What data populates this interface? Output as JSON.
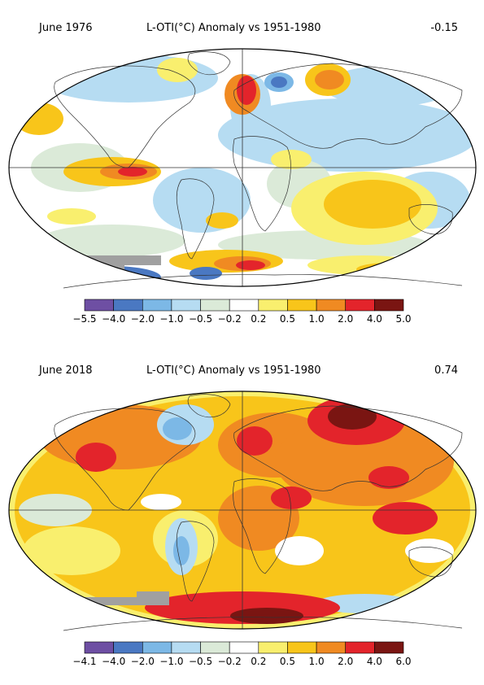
{
  "panels": [
    {
      "date": "June 1976",
      "title": "L-OTI(°C) Anomaly vs 1951-1980",
      "global_mean": "-0.15",
      "colorbar_ticks": [
        "−5.5",
        "−4.0",
        "−2.0",
        "−1.0",
        "−0.5",
        "−0.2",
        "0.2",
        "0.5",
        "1.0",
        "2.0",
        "4.0",
        "5.0"
      ]
    },
    {
      "date": "June 2018",
      "title": "L-OTI(°C) Anomaly vs 1951-1980",
      "global_mean": "0.74",
      "colorbar_ticks": [
        "−4.1",
        "−4.0",
        "−2.0",
        "−1.0",
        "−0.5",
        "−0.2",
        "0.2",
        "0.5",
        "1.0",
        "2.0",
        "4.0",
        "6.0"
      ]
    }
  ],
  "colorbar_colors": [
    "#6e4fa3",
    "#4a78c2",
    "#7cb8e6",
    "#b6dcf2",
    "#dbead8",
    "#ffffff",
    "#f9ef6e",
    "#f8c51a",
    "#f08a22",
    "#e3242b",
    "#7a1512"
  ],
  "map_colors": {
    "ocean_base": "#ffffff",
    "missing": "#a0a0a0",
    "coastline": "#333333",
    "grid_line": "#333333"
  }
}
